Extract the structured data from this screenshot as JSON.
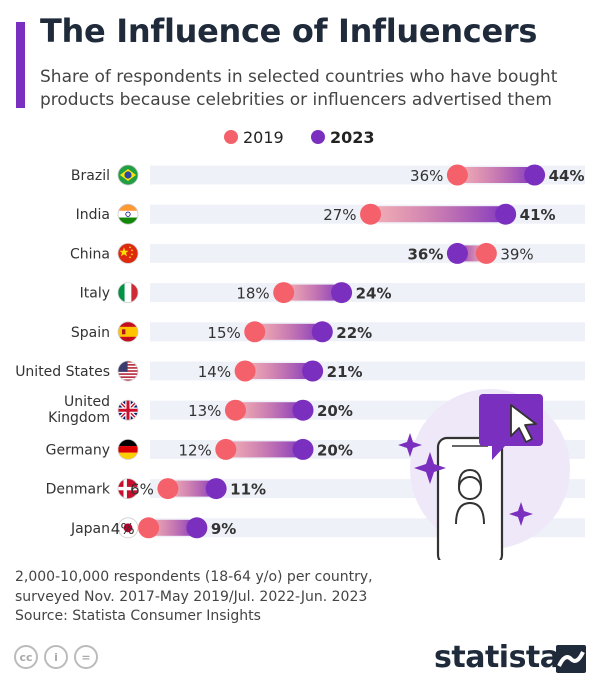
{
  "title": "The Influence of Influencers",
  "subtitle": "Share of respondents in selected countries who have bought products because celebrities or influencers advertised them",
  "chart_data": {
    "type": "dumbbell",
    "title": "The Influence of Influencers",
    "legend": [
      {
        "name": "2019",
        "color": "#F4616A"
      },
      {
        "name": "2023",
        "color": "#7B2FBE"
      }
    ],
    "unit": "%",
    "xlim": [
      0,
      50
    ],
    "rows": [
      {
        "country": "Brazil",
        "flag": "brazil-flag",
        "v2019": 36,
        "v2023": 44
      },
      {
        "country": "India",
        "flag": "india-flag",
        "v2019": 27,
        "v2023": 41
      },
      {
        "country": "China",
        "flag": "china-flag",
        "v2019": 39,
        "v2023": 36
      },
      {
        "country": "Italy",
        "flag": "italy-flag",
        "v2019": 18,
        "v2023": 24
      },
      {
        "country": "Spain",
        "flag": "spain-flag",
        "v2019": 15,
        "v2023": 22
      },
      {
        "country": "United States",
        "flag": "usa-flag",
        "v2019": 14,
        "v2023": 21
      },
      {
        "country": "United Kingdom",
        "flag": "uk-flag",
        "v2019": 13,
        "v2023": 20
      },
      {
        "country": "Germany",
        "flag": "germany-flag",
        "v2019": 12,
        "v2023": 20
      },
      {
        "country": "Denmark",
        "flag": "denmark-flag",
        "v2019": 6,
        "v2023": 11
      },
      {
        "country": "Japan",
        "flag": "japan-flag",
        "v2019": 4,
        "v2023": 9
      }
    ]
  },
  "footer": {
    "note_line1": "2,000-10,000 respondents (18-64 y/o) per country,",
    "note_line2": "surveyed Nov. 2017-May 2019/Jul. 2022-Jun. 2023",
    "source": "Source: Statista Consumer Insights"
  },
  "license": {
    "cc": "cc",
    "by": "i",
    "nd": "="
  },
  "brand": "statista"
}
